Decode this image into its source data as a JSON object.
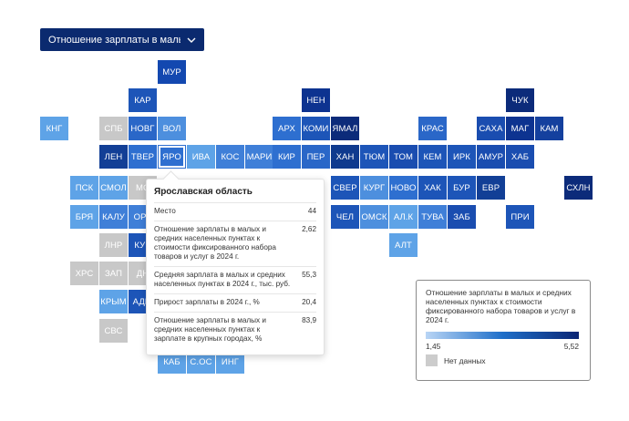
{
  "dropdown": {
    "label": "Отношение зарплаты в малы...",
    "icon": "chevron-down-icon"
  },
  "colors": {
    "dark": "#0b2a6f",
    "nodata": "#c8c8c8"
  },
  "tiles": [
    {
      "label": "МУР",
      "c": "#1348b0"
    },
    {
      "label": "КАР",
      "c": "#1d55b8"
    },
    {
      "label": "НЕН",
      "c": "#0d3390"
    },
    {
      "label": "ЧУК",
      "c": "#0c2b7a"
    },
    {
      "label": "КНГ",
      "c": "#5ea3e7"
    },
    {
      "label": "СПБ",
      "c": "#c8c8c8"
    },
    {
      "label": "НОВГ",
      "c": "#2a67c8"
    },
    {
      "label": "ВОЛ",
      "c": "#4d8fde"
    },
    {
      "label": "АРХ",
      "c": "#2e6fd0"
    },
    {
      "label": "КОМИ",
      "c": "#1d55b8"
    },
    {
      "label": "ЯМАЛ",
      "c": "#0c2b7a"
    },
    {
      "label": "КРАС",
      "c": "#2a67c8"
    },
    {
      "label": "САХА",
      "c": "#1a4db0"
    },
    {
      "label": "МАГ",
      "c": "#0d3390"
    },
    {
      "label": "КАМ",
      "c": "#14409e"
    },
    {
      "label": "ЛЕН",
      "c": "#123f96"
    },
    {
      "label": "ТВЕР",
      "c": "#2e6fd0"
    },
    {
      "label": "ЯРО",
      "c": "#2e6fd0"
    },
    {
      "label": "ИВА",
      "c": "#5ea3e7"
    },
    {
      "label": "КОС",
      "c": "#3f7fd8"
    },
    {
      "label": "МАРИ",
      "c": "#3f7fd8"
    },
    {
      "label": "КИР",
      "c": "#2e6fd0"
    },
    {
      "label": "ПЕР",
      "c": "#2a67c8"
    },
    {
      "label": "ХАН",
      "c": "#0f3a8e"
    },
    {
      "label": "ТЮМ",
      "c": "#1d55b8"
    },
    {
      "label": "ТОМ",
      "c": "#1a4db0"
    },
    {
      "label": "КЕМ",
      "c": "#1d55b8"
    },
    {
      "label": "ИРК",
      "c": "#1d55b8"
    },
    {
      "label": "АМУР",
      "c": "#1a4db0"
    },
    {
      "label": "ХАБ",
      "c": "#1a4db0"
    },
    {
      "label": "ПСК",
      "c": "#5ea3e7"
    },
    {
      "label": "СМОЛ",
      "c": "#5ea3e7"
    },
    {
      "label": "МС",
      "c": "#c8c8c8"
    },
    {
      "label": "СВЕР",
      "c": "#1d55b8"
    },
    {
      "label": "КУРГ",
      "c": "#4d8fde"
    },
    {
      "label": "НОВО",
      "c": "#2e6fd0"
    },
    {
      "label": "ХАК",
      "c": "#1d55b8"
    },
    {
      "label": "БУР",
      "c": "#1d55b8"
    },
    {
      "label": "ЕВР",
      "c": "#123f96"
    },
    {
      "label": "СХЛН",
      "c": "#0c2b7a"
    },
    {
      "label": "БРЯ",
      "c": "#5ea3e7"
    },
    {
      "label": "КАЛУ",
      "c": "#3f7fd8"
    },
    {
      "label": "ОРЛ",
      "c": "#3f7fd8"
    },
    {
      "label": "ЧЕЛ",
      "c": "#1d55b8"
    },
    {
      "label": "ОМСК",
      "c": "#4d8fde"
    },
    {
      "label": "АЛ.К",
      "c": "#5ea3e7"
    },
    {
      "label": "ТУВА",
      "c": "#3f7fd8"
    },
    {
      "label": "ЗАБ",
      "c": "#1a4db0"
    },
    {
      "label": "ПРИ",
      "c": "#1d55b8"
    },
    {
      "label": "ЛНР",
      "c": "#c8c8c8"
    },
    {
      "label": "КУР",
      "c": "#1d55b8"
    },
    {
      "label": "АЛТ",
      "c": "#5ea3e7"
    },
    {
      "label": "ХРС",
      "c": "#c8c8c8"
    },
    {
      "label": "ЗАП",
      "c": "#c8c8c8"
    },
    {
      "label": "ДН",
      "c": "#c8c8c8"
    },
    {
      "label": "КРЫМ",
      "c": "#5ea3e7"
    },
    {
      "label": "АДЫ",
      "c": "#1d55b8"
    },
    {
      "label": "СВС",
      "c": "#c8c8c8"
    },
    {
      "label": "КАБ",
      "c": "#5ea3e7"
    },
    {
      "label": "С.ОС",
      "c": "#5ea3e7"
    },
    {
      "label": "ИНГ",
      "c": "#5ea3e7"
    }
  ],
  "tooltip": {
    "title": "Ярославская область",
    "rows": [
      {
        "k": "Место",
        "v": "44"
      },
      {
        "k": "Отношение зарплаты в малых и средних населенных пунктах к стоимости фиксированного набора товаров и услуг в 2024 г.",
        "v": "2,62"
      },
      {
        "k": "Средняя зарплата в малых и средних населенных пунктах в 2024 г., тыс. руб.",
        "v": "55,3"
      },
      {
        "k": "Прирост зарплаты в 2024 г., %",
        "v": "20,4"
      },
      {
        "k": "Отношение зарплаты в малых и средних населенных пунктах к зарплате в крупных городах, %",
        "v": "83,9"
      }
    ]
  },
  "legend": {
    "title": "Отношение зарплаты в малых и средних населенных пунктах к стоимости фиксированного набора товаров и услуг в 2024 г.",
    "min": "1,45",
    "max": "5,52",
    "nodata": "Нет данных",
    "gradient": [
      "#b9d5f5",
      "#1f6fc9",
      "#0a2574"
    ]
  }
}
